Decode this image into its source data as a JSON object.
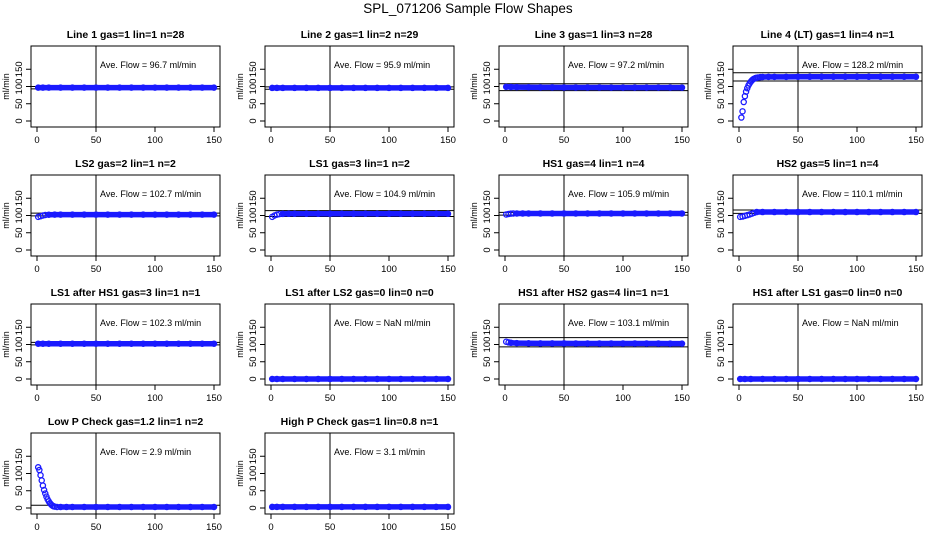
{
  "page_title": "SPL_071206  Sample Flow Shapes",
  "colors": {
    "points": "#1a1aff",
    "axes": "#000000",
    "background": "#ffffff"
  },
  "chart_data": [
    {
      "type": "scatter",
      "title": "Line 1 gas=1 lin=1 n=28",
      "ylabel": "ml/min",
      "xlim": [
        0,
        150
      ],
      "ylim": [
        0,
        200
      ],
      "xticks": [
        0,
        50,
        100,
        150
      ],
      "yticks": [
        0,
        50,
        100,
        150
      ],
      "annotation": "Ave. Flow =  96.7  ml/min",
      "hline_upper": 100,
      "hline_lower": 93,
      "x": [
        1,
        5,
        10,
        20,
        30,
        40,
        50,
        60,
        70,
        80,
        90,
        100,
        110,
        120,
        130,
        140,
        150
      ],
      "y": [
        96.7,
        96.7,
        96.7,
        96.7,
        96.7,
        96.7,
        96.7,
        96.7,
        96.7,
        96.7,
        96.7,
        96.7,
        96.7,
        96.7,
        96.7,
        96.7,
        96.7
      ]
    },
    {
      "type": "scatter",
      "title": "Line 2 gas=1 lin=2 n=29",
      "ylabel": "ml/min",
      "xlim": [
        0,
        150
      ],
      "ylim": [
        0,
        200
      ],
      "xticks": [
        0,
        50,
        100,
        150
      ],
      "yticks": [
        0,
        50,
        100,
        150
      ],
      "annotation": "Ave. Flow =  95.9  ml/min",
      "hline_upper": 99,
      "hline_lower": 92,
      "x": [
        1,
        5,
        10,
        20,
        30,
        40,
        50,
        60,
        70,
        80,
        90,
        100,
        110,
        120,
        130,
        140,
        150
      ],
      "y": [
        95.9,
        95.9,
        95.9,
        95.9,
        95.9,
        95.9,
        95.9,
        95.9,
        95.9,
        95.9,
        95.9,
        95.9,
        95.9,
        95.9,
        95.9,
        95.9,
        95.9
      ]
    },
    {
      "type": "scatter",
      "title": "Line 3 gas=1 lin=3 n=28",
      "ylabel": "ml/min",
      "xlim": [
        0,
        150
      ],
      "ylim": [
        0,
        200
      ],
      "xticks": [
        0,
        50,
        100,
        150
      ],
      "yticks": [
        0,
        50,
        100,
        150
      ],
      "annotation": "Ave. Flow =  97.2  ml/min",
      "hline_upper": 108,
      "hline_lower": 88,
      "x": [
        1,
        5,
        10,
        20,
        30,
        40,
        50,
        60,
        70,
        80,
        90,
        100,
        110,
        120,
        130,
        140,
        150
      ],
      "y": [
        99,
        98.6,
        98.3,
        97.8,
        97.5,
        97.3,
        97.1,
        97,
        97,
        97,
        96.9,
        96.9,
        96.9,
        96.8,
        96.8,
        96.8,
        96.8
      ]
    },
    {
      "type": "scatter",
      "title": "Line 4 (LT) gas=1 lin=4 n=1",
      "ylabel": "ml/min",
      "xlim": [
        0,
        150
      ],
      "ylim": [
        0,
        200
      ],
      "xticks": [
        0,
        50,
        100,
        150
      ],
      "yticks": [
        0,
        50,
        100,
        150
      ],
      "annotation": "Ave. Flow =  128.2  ml/min",
      "hline_upper": 140,
      "hline_lower": 116,
      "x": [
        2,
        3,
        4,
        5,
        6,
        7,
        8,
        9,
        10,
        11,
        12,
        13,
        14,
        15,
        16,
        18,
        20,
        25,
        30,
        40,
        50,
        60,
        70,
        80,
        90,
        100,
        110,
        120,
        130,
        140,
        150
      ],
      "y": [
        10,
        28,
        55,
        72,
        85,
        95,
        103,
        109,
        114,
        118,
        121,
        123,
        124.5,
        125.5,
        126,
        127,
        127.5,
        128,
        128,
        128,
        128.2,
        128.2,
        128.2,
        128.2,
        128.2,
        128.2,
        128.2,
        128.2,
        128.2,
        128.2,
        128.2
      ]
    },
    {
      "type": "scatter",
      "title": "LS2 gas=2 lin=1 n=2",
      "ylabel": "ml/min",
      "xlim": [
        0,
        150
      ],
      "ylim": [
        0,
        200
      ],
      "xticks": [
        0,
        50,
        100,
        150
      ],
      "yticks": [
        0,
        50,
        100,
        150
      ],
      "annotation": "Ave. Flow =  102.7  ml/min",
      "hline_upper": 107,
      "hline_lower": 99,
      "x": [
        1,
        3,
        5,
        7,
        10,
        15,
        20,
        30,
        40,
        50,
        60,
        70,
        80,
        90,
        100,
        110,
        120,
        130,
        140,
        150
      ],
      "y": [
        96,
        98,
        100,
        101.5,
        102.3,
        102.7,
        102.7,
        102.7,
        102.7,
        102.7,
        102.7,
        102.7,
        102.7,
        102.7,
        102.7,
        102.7,
        102.7,
        102.7,
        102.7,
        102.7
      ]
    },
    {
      "type": "scatter",
      "title": "LS1 gas=3 lin=1 n=2",
      "ylabel": "ml/min",
      "xlim": [
        0,
        150
      ],
      "ylim": [
        0,
        200
      ],
      "xticks": [
        0,
        50,
        100,
        150
      ],
      "yticks": [
        0,
        50,
        100,
        150
      ],
      "annotation": "Ave. Flow =  104.9  ml/min",
      "hline_upper": 114,
      "hline_lower": 97,
      "x": [
        1,
        3,
        5,
        7,
        10,
        15,
        20,
        30,
        40,
        50,
        60,
        70,
        80,
        90,
        100,
        110,
        120,
        130,
        140,
        150
      ],
      "y": [
        96,
        100,
        102.5,
        104,
        104.6,
        104.9,
        104.9,
        104.9,
        104.9,
        104.9,
        104.9,
        104.9,
        104.9,
        104.9,
        104.9,
        104.9,
        104.9,
        104.9,
        104.9,
        104.9
      ]
    },
    {
      "type": "scatter",
      "title": "HS1 gas=4 lin=1 n=4",
      "ylabel": "ml/min",
      "xlim": [
        0,
        150
      ],
      "ylim": [
        0,
        200
      ],
      "xticks": [
        0,
        50,
        100,
        150
      ],
      "yticks": [
        0,
        50,
        100,
        150
      ],
      "annotation": "Ave. Flow =  105.9  ml/min",
      "hline_upper": 109,
      "hline_lower": 101,
      "x": [
        1,
        3,
        5,
        7,
        10,
        15,
        20,
        30,
        40,
        50,
        60,
        70,
        80,
        90,
        100,
        110,
        120,
        130,
        140,
        150
      ],
      "y": [
        103,
        104.5,
        105.5,
        105.9,
        105.9,
        105.9,
        105.9,
        105.9,
        105.9,
        105.9,
        105.9,
        105.9,
        105.9,
        105.9,
        105.9,
        105.9,
        105.9,
        105.9,
        105.9,
        105.9
      ]
    },
    {
      "type": "scatter",
      "title": "HS2 gas=5 lin=1 n=4",
      "ylabel": "ml/min",
      "xlim": [
        0,
        150
      ],
      "ylim": [
        0,
        200
      ],
      "xticks": [
        0,
        50,
        100,
        150
      ],
      "yticks": [
        0,
        50,
        100,
        150
      ],
      "annotation": "Ave. Flow =  110.1  ml/min",
      "hline_upper": 116,
      "hline_lower": 106,
      "x": [
        1,
        3,
        5,
        7,
        9,
        11,
        13,
        15,
        20,
        30,
        40,
        50,
        60,
        70,
        80,
        90,
        100,
        110,
        120,
        130,
        140,
        150
      ],
      "y": [
        96,
        97,
        99,
        101,
        103,
        105.5,
        108,
        110,
        110.1,
        110.1,
        110.1,
        110.1,
        110.1,
        110.1,
        110.1,
        110.1,
        110.1,
        110.1,
        110.1,
        110.1,
        110.1,
        110.1
      ]
    },
    {
      "type": "scatter",
      "title": "LS1 after HS1 gas=3 lin=1 n=1",
      "ylabel": "ml/min",
      "xlim": [
        0,
        150
      ],
      "ylim": [
        0,
        200
      ],
      "xticks": [
        0,
        50,
        100,
        150
      ],
      "yticks": [
        0,
        50,
        100,
        150
      ],
      "annotation": "Ave. Flow =  102.3  ml/min",
      "hline_upper": 106,
      "hline_lower": 99,
      "x": [
        1,
        5,
        10,
        20,
        30,
        40,
        50,
        60,
        70,
        80,
        90,
        100,
        110,
        120,
        130,
        140,
        150
      ],
      "y": [
        102.3,
        102.3,
        102.3,
        102.3,
        102.3,
        102.3,
        102.3,
        102.3,
        102.3,
        102.3,
        102.3,
        102.3,
        102.3,
        102.3,
        102.3,
        102.3,
        102.3
      ]
    },
    {
      "type": "scatter",
      "title": "LS1 after LS2 gas=0 lin=0 n=0",
      "ylabel": "ml/min",
      "xlim": [
        0,
        150
      ],
      "ylim": [
        0,
        200
      ],
      "xticks": [
        0,
        50,
        100,
        150
      ],
      "yticks": [
        0,
        50,
        100,
        150
      ],
      "annotation": "Ave. Flow =  NaN  ml/min",
      "hline_upper": null,
      "hline_lower": null,
      "x": [
        1,
        5,
        10,
        20,
        30,
        40,
        50,
        60,
        70,
        80,
        90,
        100,
        110,
        120,
        130,
        140,
        150
      ],
      "y": [
        0,
        0,
        0,
        0,
        0,
        0,
        0,
        0,
        0,
        0,
        0,
        0,
        0,
        0,
        0,
        0,
        0
      ]
    },
    {
      "type": "scatter",
      "title": "HS1 after HS2 gas=4 lin=1 n=1",
      "ylabel": "ml/min",
      "xlim": [
        0,
        150
      ],
      "ylim": [
        0,
        200
      ],
      "xticks": [
        0,
        50,
        100,
        150
      ],
      "yticks": [
        0,
        50,
        100,
        150
      ],
      "annotation": "Ave. Flow =  103.1  ml/min",
      "hline_upper": 120,
      "hline_lower": 93,
      "x": [
        1,
        3,
        5,
        10,
        20,
        30,
        40,
        50,
        60,
        70,
        80,
        90,
        100,
        110,
        120,
        130,
        140,
        150
      ],
      "y": [
        108,
        106,
        105,
        104,
        103.5,
        103.2,
        103.1,
        103.1,
        103,
        103,
        103,
        103,
        103,
        103,
        102.9,
        102.8,
        102.7,
        102.5
      ]
    },
    {
      "type": "scatter",
      "title": "HS1 after LS1 gas=0 lin=0 n=0",
      "ylabel": "ml/min",
      "xlim": [
        0,
        150
      ],
      "ylim": [
        0,
        200
      ],
      "xticks": [
        0,
        50,
        100,
        150
      ],
      "yticks": [
        0,
        50,
        100,
        150
      ],
      "annotation": "Ave. Flow =  NaN  ml/min",
      "hline_upper": null,
      "hline_lower": null,
      "x": [
        1,
        5,
        10,
        20,
        30,
        40,
        50,
        60,
        70,
        80,
        90,
        100,
        110,
        120,
        130,
        140,
        150
      ],
      "y": [
        0,
        0,
        0,
        0,
        0,
        0,
        0,
        0,
        0,
        0,
        0,
        0,
        0,
        0,
        0,
        0,
        0
      ]
    },
    {
      "type": "scatter",
      "title": "Low P Check gas=1.2 lin=1 n=2",
      "ylabel": "ml/min",
      "xlim": [
        0,
        150
      ],
      "ylim": [
        0,
        200
      ],
      "xticks": [
        0,
        50,
        100,
        150
      ],
      "yticks": [
        0,
        50,
        100,
        150
      ],
      "annotation": "Ave. Flow =  2.9  ml/min",
      "hline_upper": 8,
      "hline_lower": null,
      "x": [
        1,
        2,
        3,
        4,
        5,
        6,
        7,
        8,
        9,
        10,
        11,
        12,
        13,
        14,
        15,
        17,
        20,
        25,
        30,
        40,
        50,
        60,
        70,
        80,
        90,
        100,
        110,
        120,
        130,
        140,
        150
      ],
      "y": [
        118,
        110,
        95,
        80,
        65,
        52,
        42,
        33,
        25,
        19,
        14,
        10,
        7,
        5,
        4,
        3,
        3,
        2.9,
        2.9,
        2.9,
        2.9,
        2.9,
        2.9,
        2.9,
        2.9,
        2.9,
        2.9,
        2.9,
        2.9,
        2.9,
        2.9
      ]
    },
    {
      "type": "scatter",
      "title": "High P Check gas=1 lin=0.8 n=1",
      "ylabel": "ml/min",
      "xlim": [
        0,
        150
      ],
      "ylim": [
        0,
        200
      ],
      "xticks": [
        0,
        50,
        100,
        150
      ],
      "yticks": [
        0,
        50,
        100,
        150
      ],
      "annotation": "Ave. Flow =  3.1  ml/min",
      "hline_upper": null,
      "hline_lower": null,
      "x": [
        1,
        5,
        10,
        20,
        30,
        40,
        50,
        60,
        70,
        80,
        90,
        100,
        110,
        120,
        130,
        140,
        150
      ],
      "y": [
        3.1,
        3.1,
        3.1,
        3.1,
        3.1,
        3.1,
        3.1,
        3.1,
        3.1,
        3.1,
        3.1,
        3.1,
        3.1,
        3.1,
        3.1,
        3.1,
        3.1
      ]
    }
  ]
}
